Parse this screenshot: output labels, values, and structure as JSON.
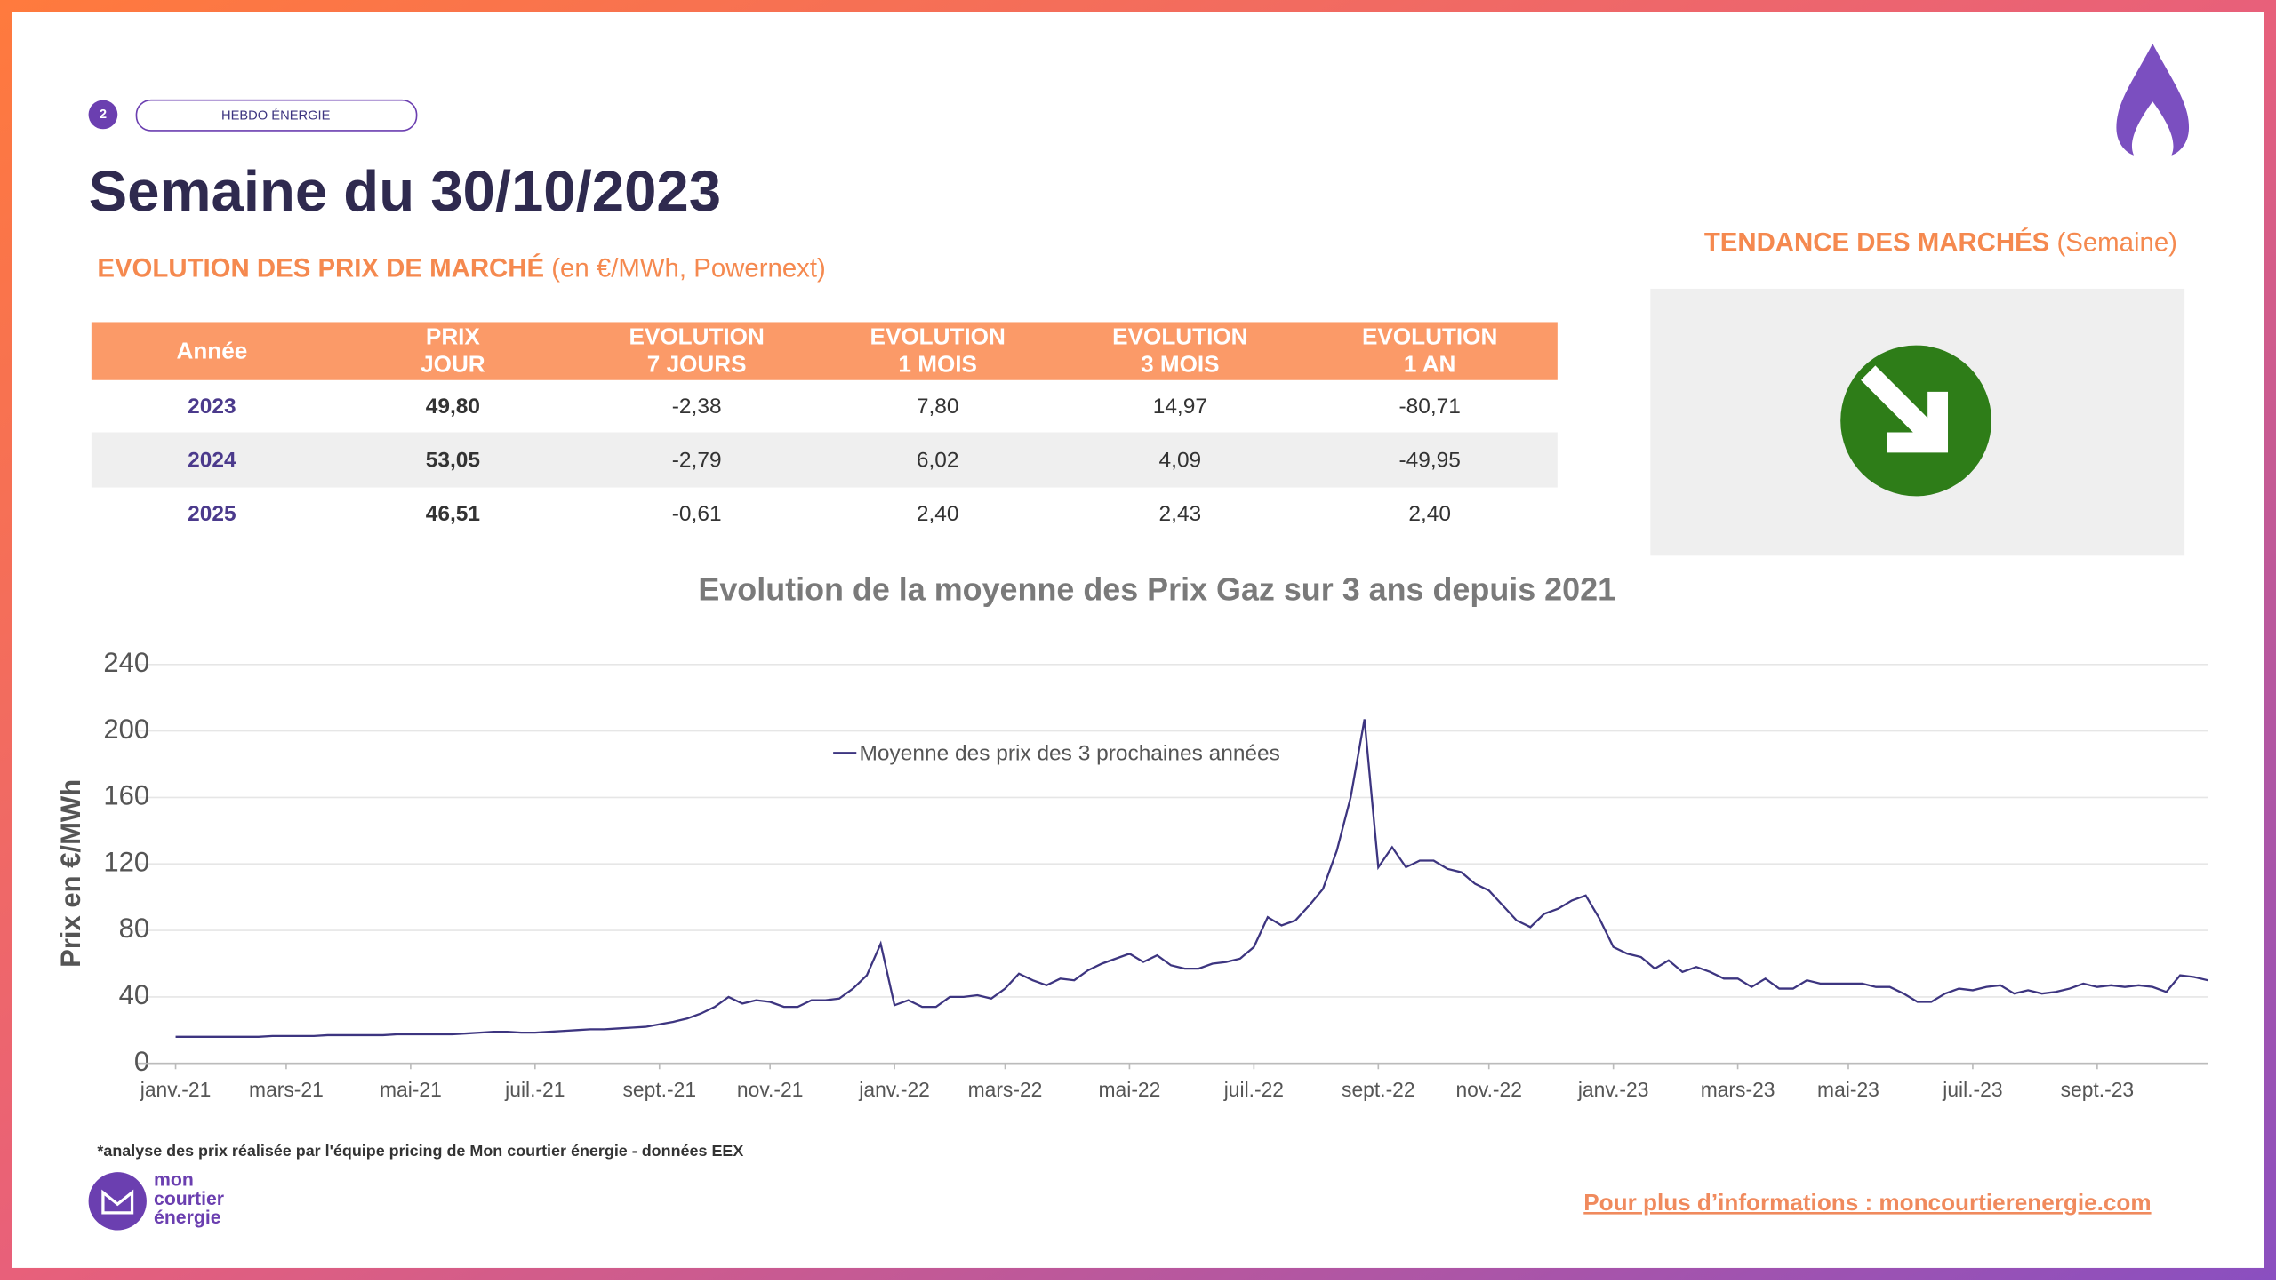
{
  "header": {
    "page_number": "2",
    "tag": "HEBDO ÉNERGIE",
    "title": "Semaine du 30/10/2023"
  },
  "table": {
    "title": "EVOLUTION DES PRIX DE MARCHÉ",
    "subtitle": "(en €/MWh, Powernext)",
    "header": [
      [
        "Année"
      ],
      [
        "PRIX",
        "JOUR"
      ],
      [
        "EVOLUTION",
        "7 JOURS"
      ],
      [
        "EVOLUTION",
        "1 MOIS"
      ],
      [
        "EVOLUTION",
        "3 MOIS"
      ],
      [
        "EVOLUTION",
        "1 AN"
      ]
    ],
    "rows": [
      [
        "2023",
        "49,80",
        "-2,38",
        "7,80",
        "14,97",
        "-80,71"
      ],
      [
        "2024",
        "53,05",
        "-2,79",
        "6,02",
        "4,09",
        "-49,95"
      ],
      [
        "2025",
        "46,51",
        "-0,61",
        "2,40",
        "2,43",
        "2,40"
      ]
    ]
  },
  "trend": {
    "title": "TENDANCE DES MARCHÉS",
    "subtitle": "(Semaine)"
  },
  "chart_data": {
    "type": "line",
    "title": "Evolution de la moyenne des Prix Gaz sur 3 ans depuis 2021",
    "y_label": "Prix en €/MWh",
    "categories": [
      "janv.-21",
      null,
      null,
      null,
      null,
      null,
      null,
      null,
      "mars-21",
      null,
      null,
      null,
      null,
      null,
      null,
      null,
      null,
      "mai-21",
      null,
      null,
      null,
      null,
      null,
      null,
      null,
      null,
      "juil.-21",
      null,
      null,
      null,
      null,
      null,
      null,
      null,
      null,
      "sept.-21",
      null,
      null,
      null,
      null,
      null,
      null,
      null,
      "nov.-21",
      null,
      null,
      null,
      null,
      null,
      null,
      null,
      null,
      "janv.-22",
      null,
      null,
      null,
      null,
      null,
      null,
      null,
      "mars-22",
      null,
      null,
      null,
      null,
      null,
      null,
      null,
      null,
      "mai-22",
      null,
      null,
      null,
      null,
      null,
      null,
      null,
      null,
      "juil.-22",
      null,
      null,
      null,
      null,
      null,
      null,
      null,
      null,
      "sept.-22",
      null,
      null,
      null,
      null,
      null,
      null,
      null,
      "nov.-22",
      null,
      null,
      null,
      null,
      null,
      null,
      null,
      null,
      "janv.-23",
      null,
      null,
      null,
      null,
      null,
      null,
      null,
      null,
      "mars-23",
      null,
      null,
      null,
      null,
      null,
      null,
      null,
      "mai-23",
      null,
      null,
      null,
      null,
      null,
      null,
      null,
      null,
      "juil.-23",
      null,
      null,
      null,
      null,
      null,
      null,
      null,
      null,
      "sept.-23",
      null,
      null,
      null,
      null,
      null,
      null,
      null,
      null
    ],
    "series": [
      {
        "name": "Moyenne des prix des 3 prochaines années",
        "color": "#3d3580",
        "values": [
          16,
          16,
          16,
          16,
          16,
          16,
          16,
          16.5,
          16.5,
          16.5,
          16.5,
          17,
          17,
          17,
          17,
          17,
          17.5,
          17.5,
          17.5,
          17.5,
          17.5,
          18,
          18.5,
          19,
          19,
          18.5,
          18.5,
          19,
          19.5,
          20,
          20.5,
          20.5,
          21,
          21.5,
          22,
          23.5,
          25,
          27,
          30,
          34,
          40,
          36,
          38,
          37,
          34,
          34,
          38,
          38,
          39,
          45,
          53,
          72,
          35,
          38,
          34,
          34,
          40,
          40,
          41,
          39,
          45,
          54,
          50,
          47,
          51,
          50,
          56,
          60,
          63,
          66,
          61,
          65,
          59,
          57,
          57,
          60,
          61,
          63,
          70,
          88,
          83,
          86,
          95,
          105,
          128,
          160,
          207,
          118,
          130,
          118,
          122,
          122,
          117,
          115,
          108,
          104,
          95,
          86,
          82,
          90,
          93,
          98,
          101,
          87,
          70,
          66,
          64,
          57,
          62,
          55,
          58,
          55,
          51,
          51,
          46,
          51,
          45,
          45,
          50,
          48,
          48,
          48,
          48,
          46,
          46,
          42,
          37,
          37,
          42,
          45,
          44,
          46,
          47,
          42,
          44,
          42,
          43,
          45,
          48,
          46,
          47,
          46,
          47,
          46,
          43,
          53,
          52,
          50
        ]
      }
    ],
    "ylim": [
      0,
      240
    ],
    "yticks": [
      0,
      40,
      80,
      120,
      160,
      200,
      240
    ],
    "grid": true
  },
  "footer": {
    "note": "*analyse des prix réalisée par l'équipe pricing de Mon courtier énergie -  données EEX",
    "logo": [
      "mon",
      "courtier",
      "énergie"
    ],
    "link": "Pour plus d’informations : moncourtierenergie.com"
  }
}
